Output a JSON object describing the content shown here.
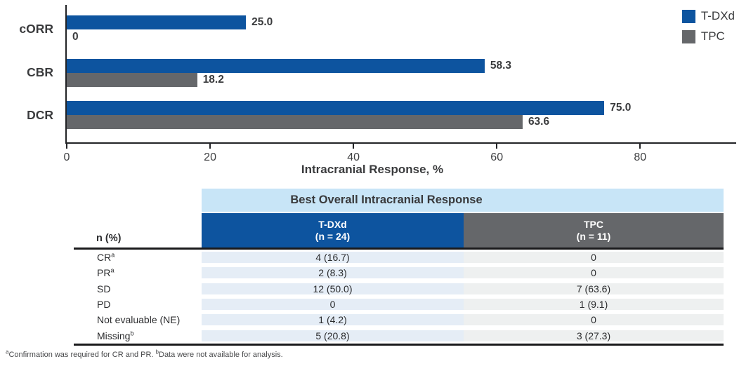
{
  "colors": {
    "tdxd": "#0d549f",
    "tpc": "#65676a",
    "band": "#c8e5f7",
    "body_tdxd": "#e5edf6",
    "body_tpc": "#eef0f0"
  },
  "chart_data": {
    "type": "bar",
    "orientation": "horizontal",
    "categories": [
      "cORR",
      "CBR",
      "DCR"
    ],
    "series": [
      {
        "name": "T-DXd",
        "color": "#0d549f",
        "values": [
          25.0,
          58.3,
          75.0
        ],
        "labels": [
          "25.0",
          "58.3",
          "75.0"
        ]
      },
      {
        "name": "TPC",
        "color": "#65676a",
        "values": [
          0,
          18.2,
          63.6
        ],
        "labels": [
          "0",
          "18.2",
          "63.6"
        ]
      }
    ],
    "xlabel": "Intracranial Response, %",
    "xlim": [
      0,
      93.4
    ],
    "xticks": [
      0,
      20,
      40,
      60,
      80
    ],
    "grid": false,
    "legend_position": "top-right"
  },
  "table": {
    "title": "Best Overall Intracranial Response",
    "row_header": "n (%)",
    "columns": [
      {
        "label": "T-DXd",
        "sub": "(n = 24)"
      },
      {
        "label": "TPC",
        "sub": "(n = 11)"
      }
    ],
    "rows": [
      {
        "label": "CR",
        "sup": "a",
        "tdxd": "4 (16.7)",
        "tpc": "0"
      },
      {
        "label": "PR",
        "sup": "a",
        "tdxd": "2 (8.3)",
        "tpc": "0"
      },
      {
        "label": "SD",
        "sup": "",
        "tdxd": "12 (50.0)",
        "tpc": "7 (63.6)"
      },
      {
        "label": "PD",
        "sup": "",
        "tdxd": "0",
        "tpc": "1 (9.1)"
      },
      {
        "label": "Not evaluable (NE)",
        "sup": "",
        "tdxd": "1 (4.2)",
        "tpc": "0"
      },
      {
        "label": "Missing",
        "sup": "b",
        "tdxd": "5 (20.8)",
        "tpc": "3 (27.3)"
      }
    ]
  },
  "footnote": {
    "sup_a": "a",
    "text_a": "Confirmation was required for CR and PR. ",
    "sup_b": "b",
    "text_b": "Data were not available for analysis."
  }
}
